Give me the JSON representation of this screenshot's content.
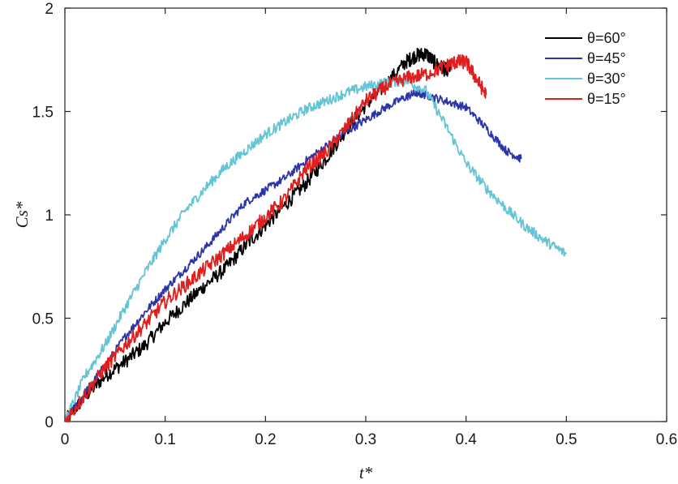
{
  "chart_data": {
    "type": "line",
    "xlabel": "t*",
    "ylabel": "Cs*",
    "xlim": [
      0,
      0.6
    ],
    "ylim": [
      0,
      2
    ],
    "xticks": [
      "0",
      "0.1",
      "0.2",
      "0.3",
      "0.4",
      "0.5",
      "0.6"
    ],
    "yticks": [
      "0",
      "0.5",
      "1",
      "1.5",
      "2"
    ],
    "grid": false,
    "legend_position": "top-right",
    "series": [
      {
        "name": "θ=60°",
        "color": "#000000",
        "noise": 0.035,
        "x": [
          0,
          0.02,
          0.04,
          0.06,
          0.08,
          0.1,
          0.12,
          0.14,
          0.16,
          0.18,
          0.2,
          0.22,
          0.24,
          0.26,
          0.28,
          0.3,
          0.32,
          0.34,
          0.35,
          0.36,
          0.37,
          0.38,
          0.385
        ],
        "y": [
          0,
          0.12,
          0.22,
          0.29,
          0.37,
          0.48,
          0.57,
          0.66,
          0.74,
          0.85,
          0.95,
          1.05,
          1.15,
          1.27,
          1.41,
          1.53,
          1.63,
          1.74,
          1.77,
          1.78,
          1.73,
          1.7,
          1.72
        ]
      },
      {
        "name": "θ=45°",
        "color": "#2b35a6",
        "noise": 0.02,
        "x": [
          0,
          0.02,
          0.04,
          0.06,
          0.08,
          0.1,
          0.12,
          0.14,
          0.16,
          0.18,
          0.2,
          0.22,
          0.24,
          0.26,
          0.28,
          0.3,
          0.32,
          0.34,
          0.35,
          0.36,
          0.38,
          0.4,
          0.42,
          0.44,
          0.455
        ],
        "y": [
          0,
          0.14,
          0.27,
          0.41,
          0.53,
          0.64,
          0.74,
          0.84,
          0.95,
          1.06,
          1.12,
          1.18,
          1.26,
          1.33,
          1.4,
          1.46,
          1.52,
          1.57,
          1.59,
          1.58,
          1.55,
          1.52,
          1.42,
          1.31,
          1.27
        ]
      },
      {
        "name": "θ=30°",
        "color": "#64c4d4",
        "noise": 0.025,
        "x": [
          0,
          0.02,
          0.04,
          0.06,
          0.08,
          0.1,
          0.12,
          0.14,
          0.16,
          0.18,
          0.2,
          0.22,
          0.24,
          0.26,
          0.28,
          0.3,
          0.32,
          0.34,
          0.36,
          0.38,
          0.4,
          0.42,
          0.44,
          0.46,
          0.48,
          0.5
        ],
        "y": [
          0,
          0.22,
          0.37,
          0.55,
          0.72,
          0.88,
          1.02,
          1.13,
          1.23,
          1.31,
          1.39,
          1.45,
          1.51,
          1.55,
          1.59,
          1.62,
          1.64,
          1.65,
          1.6,
          1.43,
          1.25,
          1.13,
          1.03,
          0.94,
          0.87,
          0.81
        ]
      },
      {
        "name": "θ=15°",
        "color": "#e01e1e",
        "noise": 0.035,
        "x": [
          0,
          0.02,
          0.04,
          0.06,
          0.08,
          0.1,
          0.12,
          0.14,
          0.16,
          0.18,
          0.2,
          0.22,
          0.24,
          0.26,
          0.28,
          0.3,
          0.32,
          0.34,
          0.36,
          0.38,
          0.39,
          0.4,
          0.41,
          0.42
        ],
        "y": [
          0,
          0.13,
          0.26,
          0.37,
          0.47,
          0.58,
          0.66,
          0.74,
          0.82,
          0.9,
          0.99,
          1.08,
          1.22,
          1.3,
          1.42,
          1.55,
          1.62,
          1.66,
          1.68,
          1.72,
          1.74,
          1.74,
          1.66,
          1.58
        ]
      }
    ]
  }
}
